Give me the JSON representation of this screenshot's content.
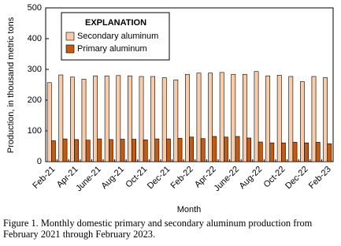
{
  "chart_data": {
    "type": "bar",
    "y_label": "Production, in thousand metric tons",
    "x_label": "Month",
    "legend_title": "EXPLANATION",
    "legend": "upper left",
    "caption": "Figure 1. Monthly domestic primary and secondary aluminum production from February 2021 through February 2023.",
    "categories": [
      "Feb-21",
      null,
      "Apr-21",
      null,
      "June-21",
      null,
      "Aug-21",
      null,
      "Oct-21",
      null,
      "Dec-21",
      null,
      "Feb-22",
      null,
      "Apr-22",
      null,
      "June-22",
      null,
      "Aug-22",
      null,
      "Oct-22",
      null,
      "Dec-22",
      null,
      "Feb-23"
    ],
    "series": [
      {
        "name": "Secondary aluminum",
        "color": "#fbcba8",
        "values": [
          257,
          282,
          275,
          268,
          279,
          279,
          280,
          279,
          277,
          277,
          273,
          266,
          284,
          288,
          288,
          290,
          284,
          284,
          293,
          279,
          281,
          277,
          260,
          277,
          273
        ]
      },
      {
        "name": "Primary aluminum",
        "color": "#c55a11",
        "values": [
          68,
          74,
          72,
          70,
          74,
          72,
          73,
          73,
          71,
          74,
          74,
          76,
          80,
          75,
          82,
          80,
          82,
          77,
          64,
          61,
          61,
          63,
          61,
          63,
          58
        ]
      }
    ],
    "ylim": [
      0,
      500
    ],
    "yticks": [
      0,
      100,
      200,
      300,
      400,
      500
    ],
    "grid": false
  }
}
